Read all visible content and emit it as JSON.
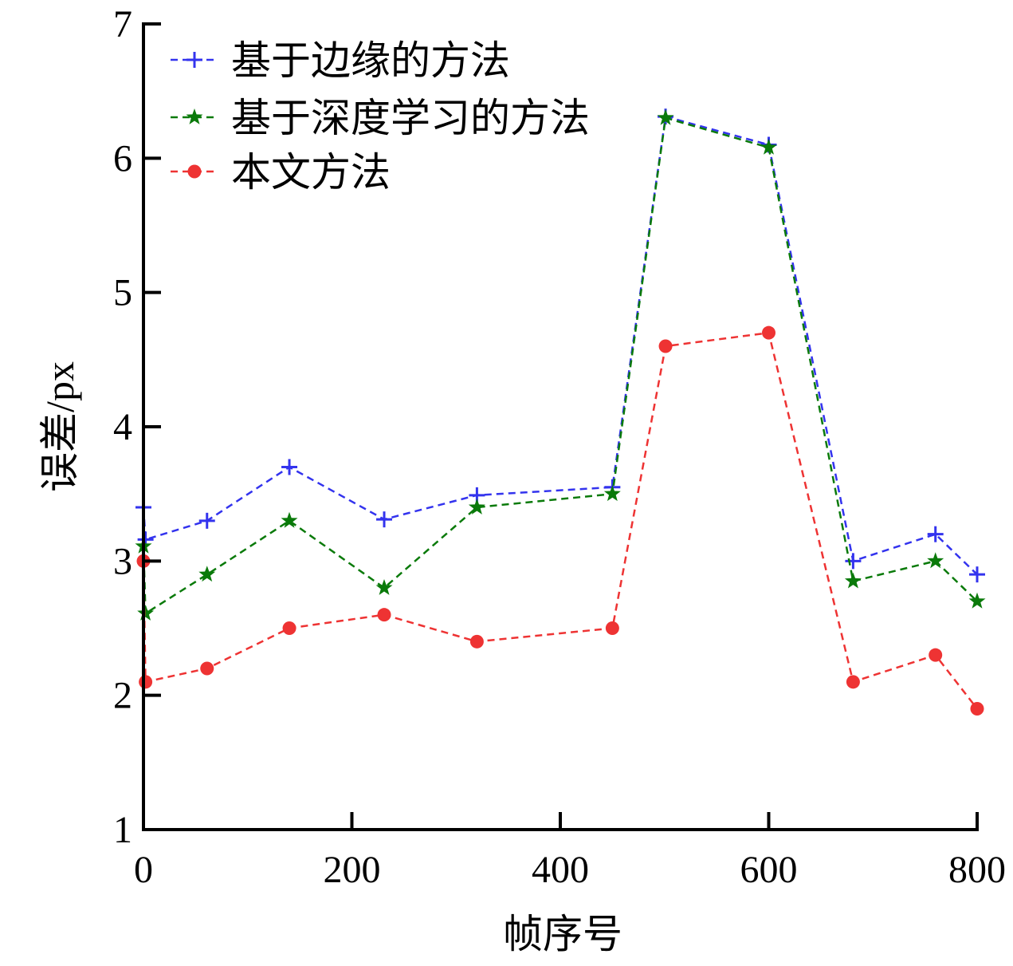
{
  "chart_data": {
    "type": "line",
    "title": "",
    "xlabel": "帧序号",
    "ylabel": "误差/px",
    "xlim": [
      0,
      800
    ],
    "ylim": [
      1,
      7
    ],
    "xticks": [
      "0",
      "200",
      "400",
      "600",
      "800"
    ],
    "yticks": [
      "1",
      "2",
      "3",
      "4",
      "5",
      "6",
      "7"
    ],
    "grid": false,
    "legend_position": "top-left",
    "x": [
      0,
      2,
      61,
      140,
      231,
      320,
      450,
      501,
      600,
      681,
      760,
      800
    ],
    "series": [
      {
        "name": "基于边缘的方法",
        "color": "#3333ee",
        "marker": "plus",
        "values": [
          3.4,
          3.16,
          3.3,
          3.7,
          3.31,
          3.49,
          3.55,
          6.31,
          6.1,
          3.0,
          3.2,
          2.9
        ]
      },
      {
        "name": "基于深度学习的方法",
        "color": "#0a7a0a",
        "marker": "star",
        "values": [
          3.11,
          2.61,
          2.9,
          3.3,
          2.8,
          3.4,
          3.5,
          6.3,
          6.08,
          2.85,
          3.0,
          2.7
        ]
      },
      {
        "name": "本文方法",
        "color": "#ee3333",
        "marker": "circle",
        "values": [
          3.0,
          2.1,
          2.2,
          2.5,
          2.6,
          2.4,
          2.5,
          4.6,
          4.7,
          2.1,
          2.3,
          1.9
        ]
      }
    ]
  }
}
